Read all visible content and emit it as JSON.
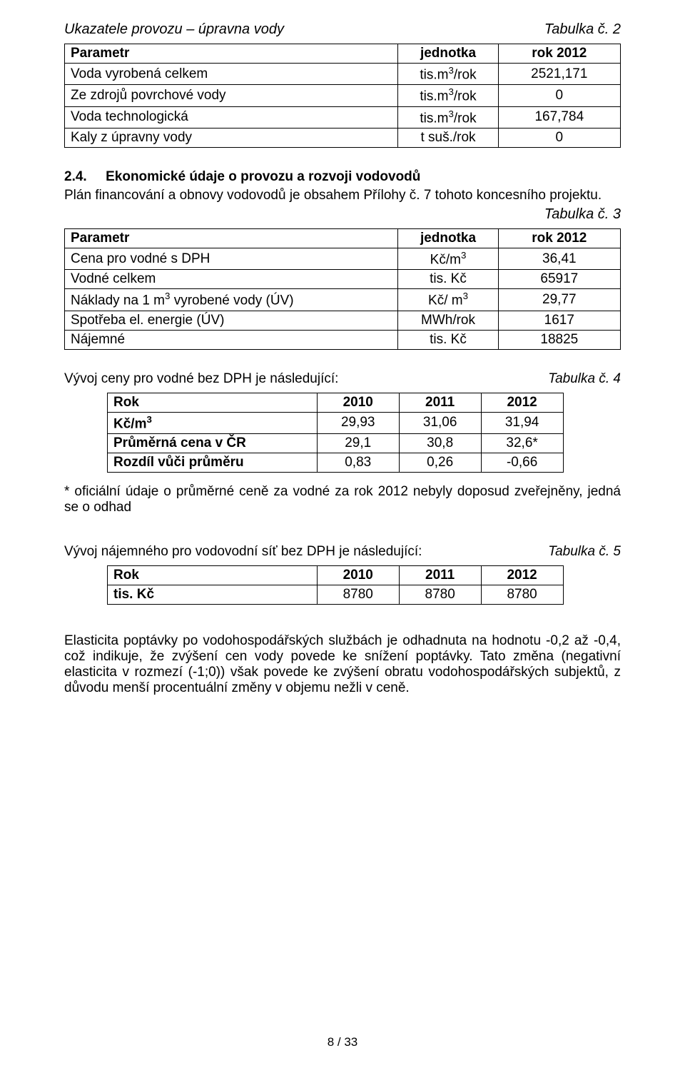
{
  "section1": {
    "title": "Ukazatele provozu – úpravna vody",
    "table_ref": "Tabulka č. 2"
  },
  "table2": {
    "headers": {
      "param": "Parametr",
      "unit": "jednotka",
      "year": "rok 2012"
    },
    "rows": [
      {
        "param": "Voda vyrobená celkem",
        "unit_html": "tis.m<sup>3</sup>/rok",
        "value": "2521,171"
      },
      {
        "param": "Ze zdrojů povrchové vody",
        "unit_html": "tis.m<sup>3</sup>/rok",
        "value": "0"
      },
      {
        "param": "Voda technologická",
        "unit_html": "tis.m<sup>3</sup>/rok",
        "value": "167,784"
      },
      {
        "param": "Kaly z úpravny vody",
        "unit_html": "t suš./rok",
        "value": "0"
      }
    ]
  },
  "section24": {
    "num": "2.4.",
    "heading": "Ekonomické údaje o provozu a rozvoji vodovodů",
    "body": "Plán financování a obnovy vodovodů je obsahem Přílohy č. 7 tohoto koncesního projektu.",
    "table_ref": "Tabulka č. 3"
  },
  "table3": {
    "headers": {
      "param": "Parametr",
      "unit": "jednotka",
      "year": "rok 2012"
    },
    "rows": [
      {
        "param": "Cena pro vodné s DPH",
        "unit_html": "Kč/m<sup>3</sup>",
        "value": "36,41"
      },
      {
        "param": "Vodné celkem",
        "unit_html": "tis. Kč",
        "value": "65917"
      },
      {
        "param_html": "Náklady na 1 m<sup>3</sup> vyrobené vody (ÚV)",
        "unit_html": "Kč/ m<sup>3</sup>",
        "value": "29,77"
      },
      {
        "param": "Spotřeba el. energie (ÚV)",
        "unit_html": "MWh/rok",
        "value": "1617"
      },
      {
        "param": "Nájemné",
        "unit_html": "tis. Kč",
        "value": "18825"
      }
    ]
  },
  "section_t4": {
    "pre": "Vývoj ceny pro vodné bez DPH je následující:",
    "table_ref": "Tabulka č. 4"
  },
  "table4": {
    "headers": [
      "Rok",
      "2010",
      "2011",
      "2012"
    ],
    "rows": [
      {
        "label_html": "Kč/m<sup>3</sup>",
        "c1": "29,93",
        "c2": "31,06",
        "c3": "31,94",
        "bold": true
      },
      {
        "label": "Průměrná cena v ČR",
        "c1": "29,1",
        "c2": "30,8",
        "c3": "32,6*",
        "bold": true
      },
      {
        "label": "Rozdíl vůči průměru",
        "c1": "0,83",
        "c2": "0,26",
        "c3": "-0,66",
        "bold": true
      }
    ]
  },
  "note4": "* oficiální údaje o průměrné ceně za vodné za rok 2012 nebyly doposud zveřejněny, jedná se o odhad",
  "section_t5": {
    "pre": "Vývoj nájemného pro vodovodní síť bez DPH je následující:",
    "table_ref": "Tabulka č. 5"
  },
  "table5": {
    "headers": [
      "Rok",
      "2010",
      "2011",
      "2012"
    ],
    "rows": [
      {
        "label": "tis. Kč",
        "c1": "8780",
        "c2": "8780",
        "c3": "8780",
        "bold": true
      }
    ]
  },
  "bottom_para": "Elasticita poptávky po vodohospodářských službách je odhadnuta na hodnotu -0,2 až -0,4, což indikuje, že zvýšení cen vody povede ke snížení poptávky. Tato změna (negativní elasticita v rozmezí (-1;0)) však povede ke zvýšení obratu vodohospodářských subjektů, z důvodu menší procentuální změny v objemu nežli v ceně.",
  "footer": "8 / 33",
  "colors": {
    "text": "#000000",
    "background": "#ffffff",
    "border": "#000000"
  },
  "table_col_widths": {
    "t2_t3": {
      "param_pct": 60,
      "unit_pct": 18,
      "val_pct": 22
    },
    "t4_t5": {
      "label_pct": 46,
      "col_pct": 18
    }
  }
}
